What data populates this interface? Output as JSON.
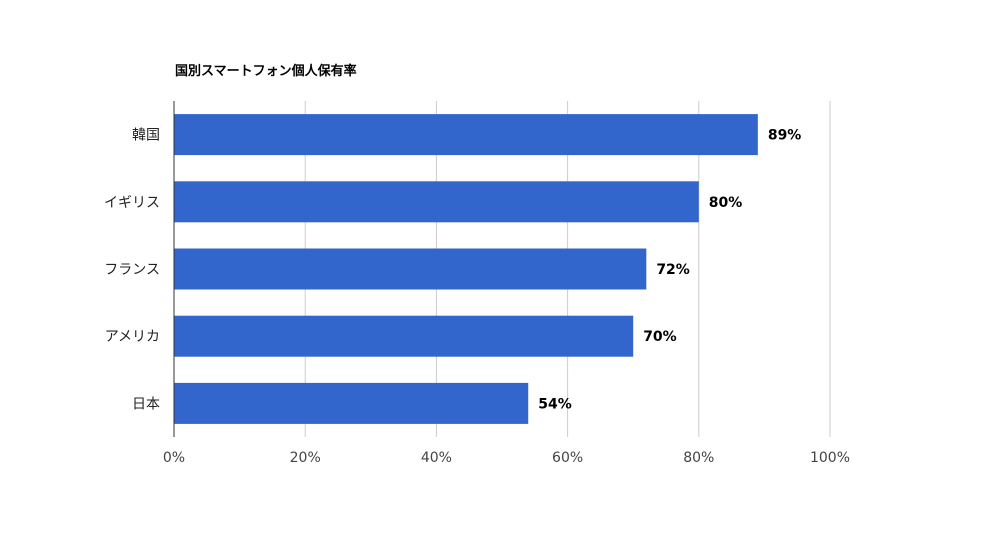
{
  "chart_data": {
    "type": "bar",
    "orientation": "horizontal",
    "title": "国別スマートフォン個人保有率",
    "categories": [
      "韓国",
      "イギリス",
      "フランス",
      "アメリカ",
      "日本"
    ],
    "values": [
      89,
      80,
      72,
      70,
      54
    ],
    "data_labels": [
      "89%",
      "80%",
      "72%",
      "70%",
      "54%"
    ],
    "xlim": [
      0,
      100
    ],
    "xticks": [
      0,
      20,
      40,
      60,
      80,
      100
    ],
    "xtick_labels": [
      "0%",
      "20%",
      "40%",
      "60%",
      "80%",
      "100%"
    ],
    "xlabel": "",
    "ylabel": "",
    "grid": true,
    "legend": "none",
    "bar_color": "#3366cc",
    "grid_color": "#cccccc",
    "axis_color": "#333333"
  }
}
